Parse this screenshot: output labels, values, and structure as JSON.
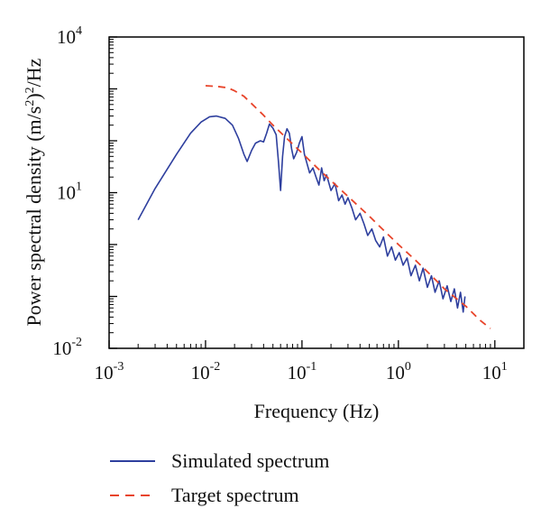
{
  "chart_data": {
    "type": "line",
    "title": "",
    "xlabel": "Frequency (Hz)",
    "ylabel_parts": [
      "Power spectral density (m/s",
      "2",
      ")",
      "2",
      "/Hz"
    ],
    "x_scale": "log",
    "y_scale": "log",
    "xlim": [
      0.001,
      20
    ],
    "ylim": [
      0.01,
      10000
    ],
    "x_ticks": [
      {
        "base": "10",
        "exp": "-3",
        "value": 0.001
      },
      {
        "base": "10",
        "exp": "-2",
        "value": 0.01
      },
      {
        "base": "10",
        "exp": "-1",
        "value": 0.1
      },
      {
        "base": "10",
        "exp": "0",
        "value": 1
      },
      {
        "base": "10",
        "exp": "1",
        "value": 10
      }
    ],
    "y_ticks": [
      {
        "base": "10",
        "exp": "-2",
        "value": 0.01
      },
      {
        "base": "10",
        "exp": "1",
        "value": 10
      },
      {
        "base": "10",
        "exp": "4",
        "value": 10000
      }
    ],
    "grid": false,
    "legend_position": "bottom",
    "series": [
      {
        "name": "Simulated spectrum",
        "color": "#2e3f9e",
        "style": "solid",
        "points": [
          [
            0.002,
            3.0
          ],
          [
            0.003,
            12
          ],
          [
            0.005,
            55
          ],
          [
            0.007,
            140
          ],
          [
            0.009,
            230
          ],
          [
            0.011,
            290
          ],
          [
            0.013,
            300
          ],
          [
            0.016,
            270
          ],
          [
            0.019,
            200
          ],
          [
            0.022,
            110
          ],
          [
            0.025,
            55
          ],
          [
            0.027,
            40
          ],
          [
            0.03,
            65
          ],
          [
            0.033,
            90
          ],
          [
            0.037,
            100
          ],
          [
            0.04,
            95
          ],
          [
            0.043,
            140
          ],
          [
            0.046,
            210
          ],
          [
            0.05,
            175
          ],
          [
            0.054,
            130
          ],
          [
            0.057,
            40
          ],
          [
            0.06,
            11
          ],
          [
            0.063,
            50
          ],
          [
            0.066,
            120
          ],
          [
            0.07,
            170
          ],
          [
            0.074,
            140
          ],
          [
            0.078,
            70
          ],
          [
            0.082,
            45
          ],
          [
            0.088,
            60
          ],
          [
            0.094,
            90
          ],
          [
            0.1,
            120
          ],
          [
            0.106,
            55
          ],
          [
            0.112,
            38
          ],
          [
            0.12,
            24
          ],
          [
            0.13,
            30
          ],
          [
            0.14,
            20
          ],
          [
            0.15,
            14
          ],
          [
            0.16,
            30
          ],
          [
            0.17,
            17
          ],
          [
            0.18,
            22
          ],
          [
            0.2,
            11
          ],
          [
            0.22,
            15
          ],
          [
            0.24,
            7
          ],
          [
            0.26,
            9
          ],
          [
            0.28,
            6
          ],
          [
            0.3,
            8
          ],
          [
            0.33,
            5
          ],
          [
            0.36,
            3
          ],
          [
            0.4,
            4
          ],
          [
            0.44,
            2.5
          ],
          [
            0.48,
            1.5
          ],
          [
            0.53,
            2
          ],
          [
            0.58,
            1.2
          ],
          [
            0.64,
            0.9
          ],
          [
            0.7,
            1.4
          ],
          [
            0.77,
            0.6
          ],
          [
            0.85,
            0.9
          ],
          [
            0.93,
            0.5
          ],
          [
            1.02,
            0.7
          ],
          [
            1.12,
            0.4
          ],
          [
            1.23,
            0.55
          ],
          [
            1.35,
            0.25
          ],
          [
            1.5,
            0.4
          ],
          [
            1.65,
            0.2
          ],
          [
            1.8,
            0.35
          ],
          [
            2.0,
            0.15
          ],
          [
            2.2,
            0.25
          ],
          [
            2.4,
            0.12
          ],
          [
            2.65,
            0.2
          ],
          [
            2.9,
            0.09
          ],
          [
            3.2,
            0.16
          ],
          [
            3.5,
            0.08
          ],
          [
            3.8,
            0.14
          ],
          [
            4.1,
            0.06
          ],
          [
            4.4,
            0.12
          ],
          [
            4.7,
            0.05
          ],
          [
            4.9,
            0.1
          ]
        ]
      },
      {
        "name": "Target spectrum",
        "color": "#e8442a",
        "style": "dashed",
        "points": [
          [
            0.01,
            1150
          ],
          [
            0.013,
            1120
          ],
          [
            0.017,
            1050
          ],
          [
            0.02,
            920
          ],
          [
            0.025,
            720
          ],
          [
            0.03,
            520
          ],
          [
            0.04,
            310
          ],
          [
            0.05,
            200
          ],
          [
            0.07,
            110
          ],
          [
            0.1,
            58
          ],
          [
            0.15,
            28
          ],
          [
            0.2,
            17
          ],
          [
            0.3,
            8.5
          ],
          [
            0.5,
            3.5
          ],
          [
            0.7,
            1.9
          ],
          [
            1,
            1.0
          ],
          [
            1.5,
            0.5
          ],
          [
            2,
            0.3
          ],
          [
            3,
            0.14
          ],
          [
            5,
            0.065
          ],
          [
            7,
            0.035
          ],
          [
            9,
            0.024
          ]
        ]
      }
    ]
  }
}
